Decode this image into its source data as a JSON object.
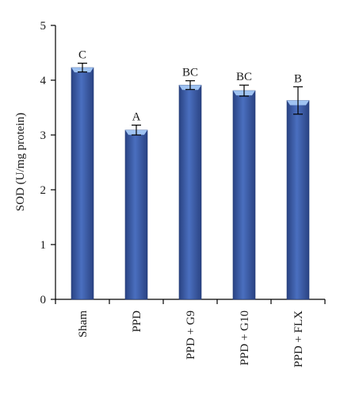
{
  "chart_data": {
    "type": "bar",
    "categories": [
      "Sham",
      "PPD",
      "PPD + G9",
      "PPD + G10",
      "PPD + FLX"
    ],
    "values": [
      4.23,
      3.09,
      3.91,
      3.81,
      3.63
    ],
    "errors": [
      0.08,
      0.09,
      0.08,
      0.1,
      0.25
    ],
    "significance_labels": [
      "C",
      "A",
      "BC",
      "BC",
      "B"
    ],
    "ylabel": "SOD (U/mg protein)",
    "xlabel": "",
    "ylim": [
      0,
      5
    ],
    "yticks": [
      0,
      1,
      2,
      3,
      4,
      5
    ],
    "grid": false,
    "colors": {
      "bar": "#3b5ba5",
      "bar_light": "#6b8fd6",
      "bar_dark": "#2a4383",
      "bar_top": "#9fc3f2",
      "axis": "#000000"
    }
  }
}
